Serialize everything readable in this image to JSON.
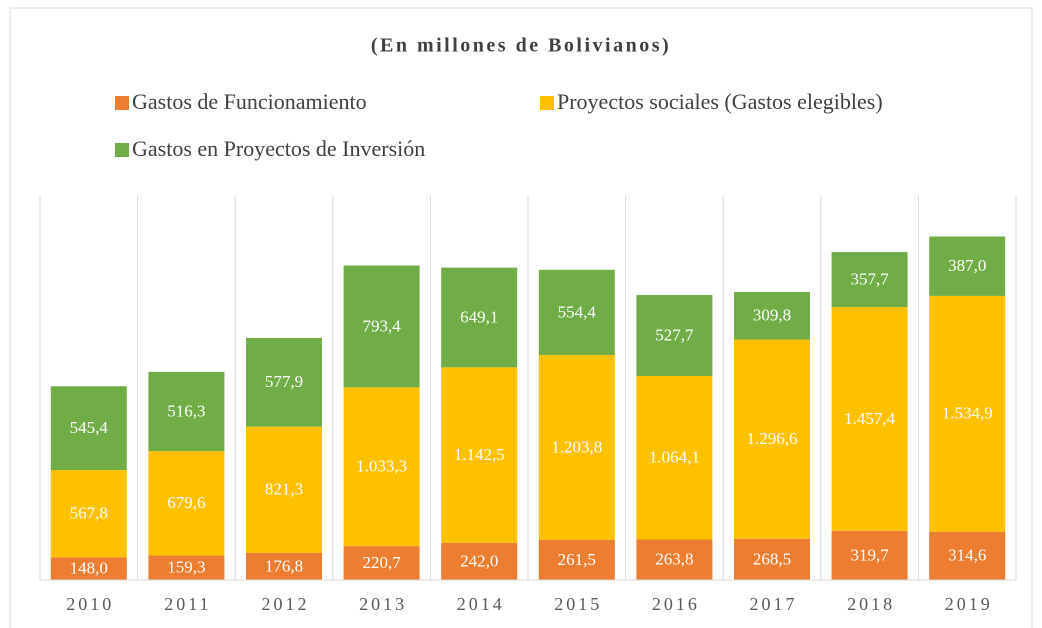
{
  "chart_data": {
    "type": "stacked_bar",
    "title": "(En millones de Bolivianos)",
    "categories": [
      "2010",
      "2011",
      "2012",
      "2013",
      "2014",
      "2015",
      "2016",
      "2017",
      "2018",
      "2019"
    ],
    "series": [
      {
        "name": "Gastos de Funcionamiento",
        "color": "#ed7d31",
        "values": [
          148.0,
          159.3,
          176.8,
          220.7,
          242.0,
          261.5,
          263.8,
          268.5,
          319.7,
          314.6
        ],
        "value_labels": [
          "148,0",
          "159,3",
          "176,8",
          "220,7",
          "242,0",
          "261,5",
          "263,8",
          "268,5",
          "319,7",
          "314,6"
        ]
      },
      {
        "name": "Proyectos sociales (Gastos elegibles)",
        "color": "#ffc000",
        "values": [
          567.8,
          679.6,
          821.3,
          1033.3,
          1142.5,
          1203.8,
          1064.1,
          1296.6,
          1457.4,
          1534.9
        ],
        "value_labels": [
          "567,8",
          "679,6",
          "821,3",
          "1.033,3",
          "1.142,5",
          "1.203,8",
          "1.064,1",
          "1.296,6",
          "1.457,4",
          "1.534,9"
        ]
      },
      {
        "name": "Gastos en Proyectos de Inversión",
        "color": "#70ad47",
        "values": [
          545.4,
          516.3,
          577.9,
          793.4,
          649.1,
          554.4,
          527.7,
          309.8,
          357.7,
          387.0
        ],
        "value_labels": [
          "545,4",
          "516,3",
          "577,9",
          "793,4",
          "649,1",
          "554,4",
          "527,7",
          "309,8",
          "357,7",
          "387,0"
        ]
      }
    ],
    "ylim": [
      0,
      2500
    ]
  }
}
